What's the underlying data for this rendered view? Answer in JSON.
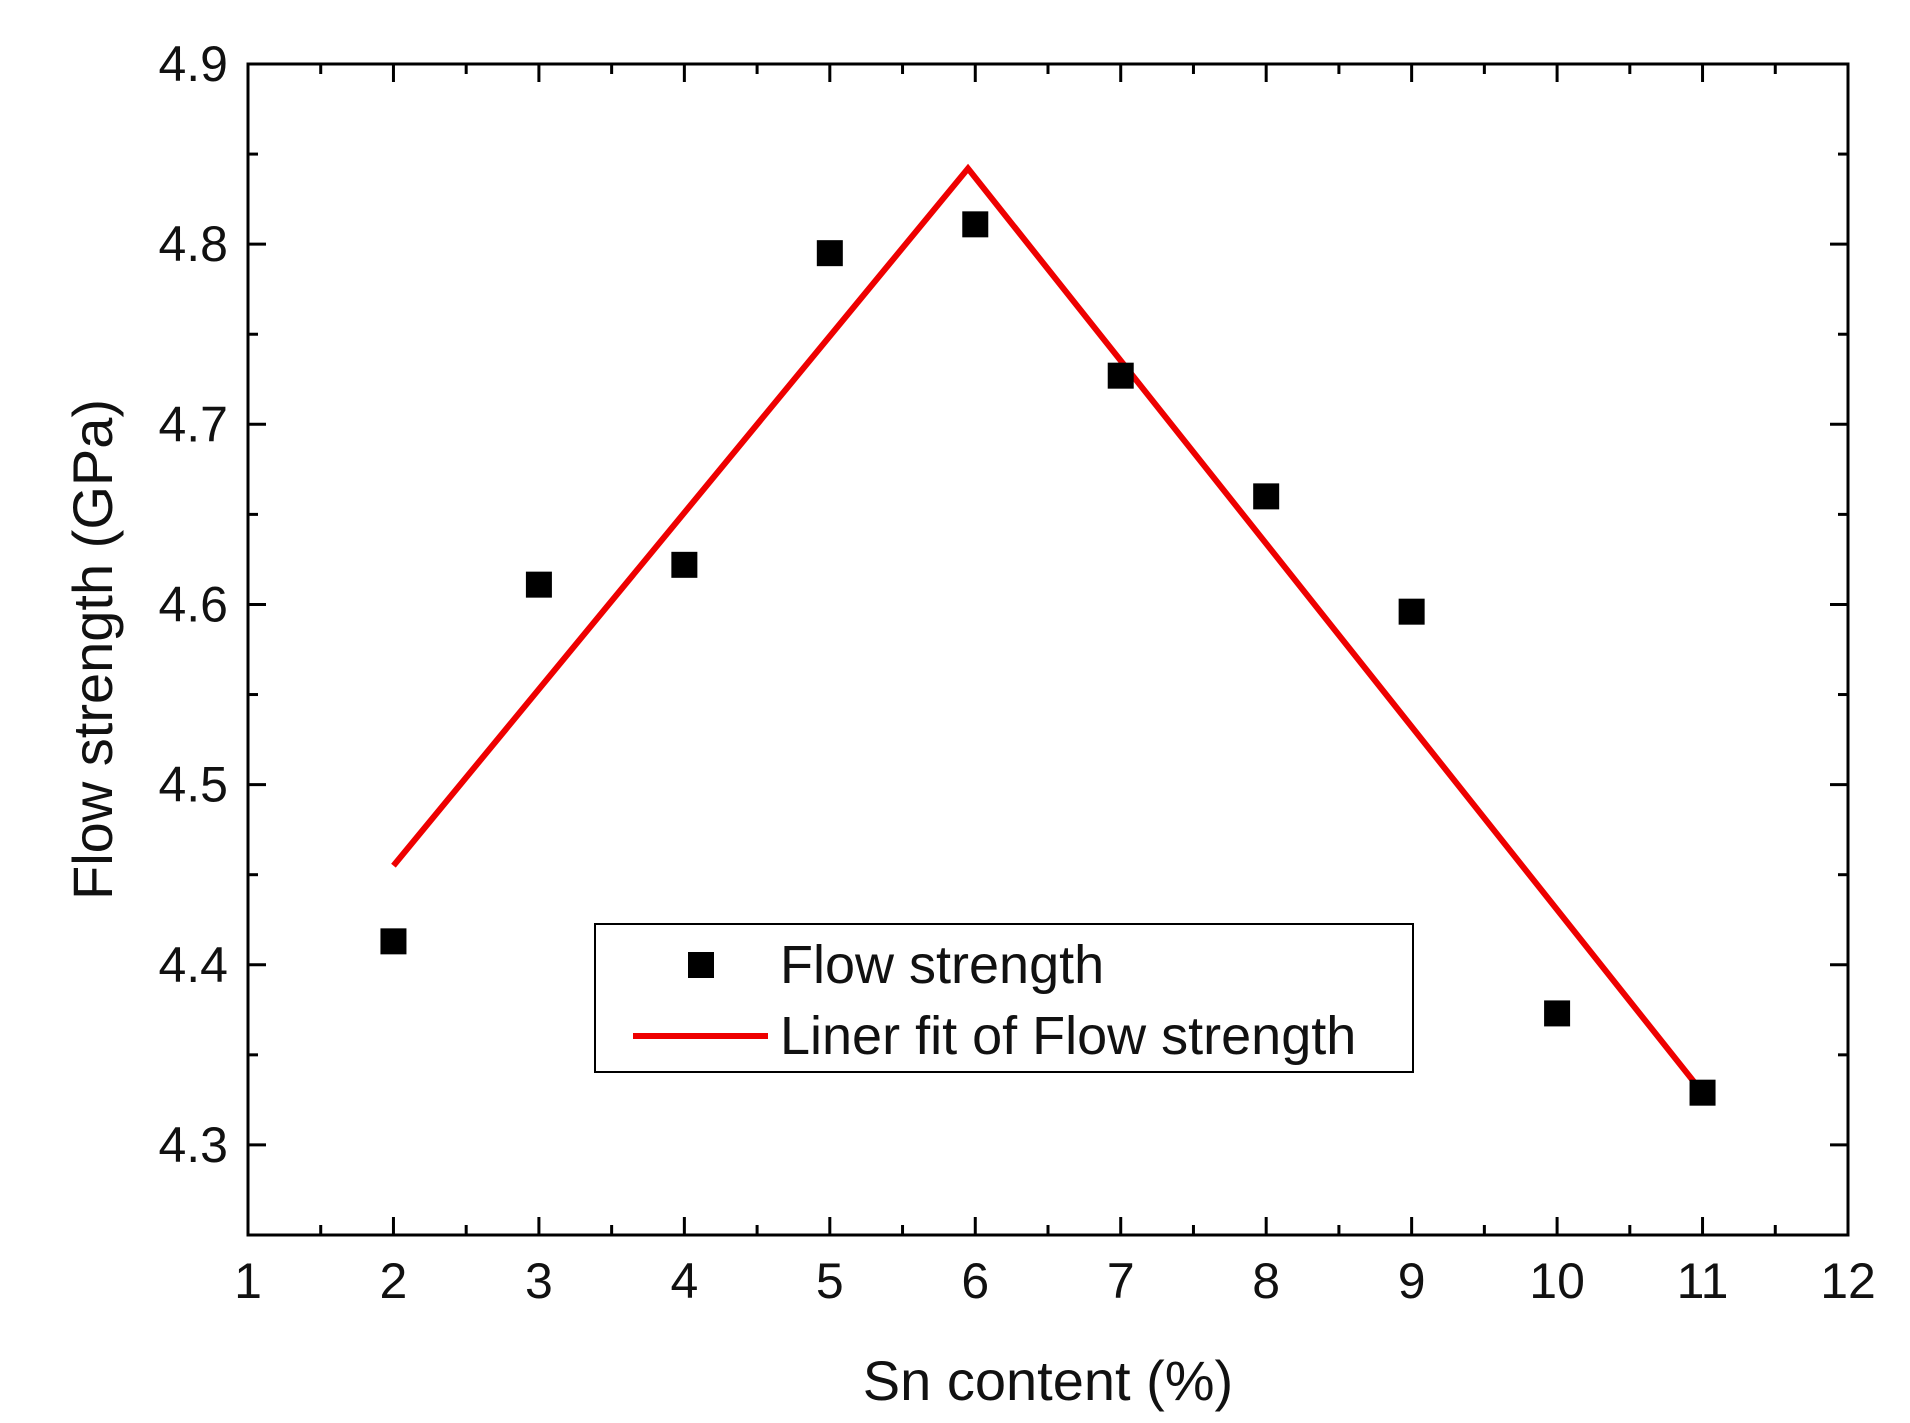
{
  "chart_data": {
    "type": "scatter",
    "title": "",
    "xlabel": "Sn content (%)",
    "ylabel": "Flow strength (GPa)",
    "xlim": [
      1,
      12
    ],
    "ylim": [
      4.25,
      4.9
    ],
    "x_ticks": [
      "1",
      "2",
      "3",
      "4",
      "5",
      "6",
      "7",
      "8",
      "9",
      "10",
      "11",
      "12"
    ],
    "y_ticks": [
      "4.3",
      "4.4",
      "4.5",
      "4.6",
      "4.7",
      "4.8",
      "4.9"
    ],
    "grid": false,
    "legend_position": "bottom-center",
    "series": [
      {
        "name": "Flow strength",
        "kind": "scatter",
        "marker": "square",
        "color": "#000000",
        "x": [
          2,
          3,
          4,
          5,
          6,
          7,
          8,
          9,
          10,
          11
        ],
        "y": [
          4.413,
          4.611,
          4.622,
          4.795,
          4.811,
          4.727,
          4.66,
          4.596,
          4.373,
          4.329
        ]
      },
      {
        "name": "Liner fit of Flow strength",
        "kind": "line",
        "color": "#ee0000",
        "x": [
          2,
          5.95,
          11
        ],
        "y": [
          4.455,
          4.842,
          4.329
        ]
      }
    ]
  }
}
